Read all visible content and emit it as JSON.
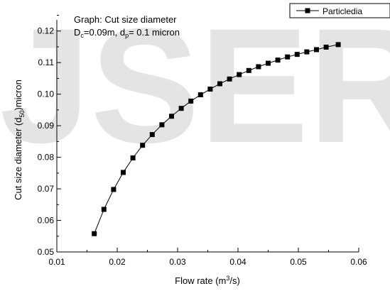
{
  "watermark": "IJSER",
  "chart_data": {
    "type": "line",
    "title_line1": "Graph: Cut size diameter",
    "title_line2": {
      "p1": "D",
      "s1": "c",
      "p2": "=0.09m, d",
      "s2": "p",
      "p3": "= 0.1 micron"
    },
    "xlabel": {
      "p1": "Flow rate (m",
      "sup": "3",
      "p2": "/s)"
    },
    "ylabel": {
      "p1": "Cut size diameter (d",
      "sub": "50",
      "p2": ")micron"
    },
    "xlim": [
      0.01,
      0.06
    ],
    "ylim": [
      0.05,
      0.125
    ],
    "xticks": [
      0.01,
      0.02,
      0.03,
      0.04,
      0.05,
      0.06
    ],
    "xtick_labels": [
      "0.01",
      "0.02",
      "0.03",
      "0.04",
      "0.05",
      "0.06"
    ],
    "yticks": [
      0.05,
      0.06,
      0.07,
      0.08,
      0.09,
      0.1,
      0.11,
      0.12
    ],
    "ytick_labels": [
      "0.05",
      "0.06",
      "0.07",
      "0.08",
      "0.09",
      "0.10",
      "0.11",
      "0.12"
    ],
    "legend": {
      "label": "Particledia",
      "position": "top-right"
    },
    "series": [
      {
        "name": "Particledia",
        "color": "#000000",
        "marker": "square",
        "x": [
          0.0162,
          0.0178,
          0.0194,
          0.021,
          0.0226,
          0.0242,
          0.0258,
          0.0274,
          0.029,
          0.0306,
          0.0322,
          0.0338,
          0.0354,
          0.037,
          0.0386,
          0.0402,
          0.0418,
          0.0434,
          0.045,
          0.0466,
          0.0482,
          0.0498,
          0.0514,
          0.053,
          0.0546,
          0.0566
        ],
        "y": [
          0.0558,
          0.0635,
          0.0698,
          0.0752,
          0.0798,
          0.0838,
          0.0872,
          0.0903,
          0.093,
          0.0955,
          0.0978,
          0.0998,
          0.1016,
          0.1033,
          0.1048,
          0.1062,
          0.1075,
          0.1087,
          0.1098,
          0.1108,
          0.1118,
          0.1126,
          0.1134,
          0.1141,
          0.1149,
          0.1157
        ]
      }
    ]
  }
}
